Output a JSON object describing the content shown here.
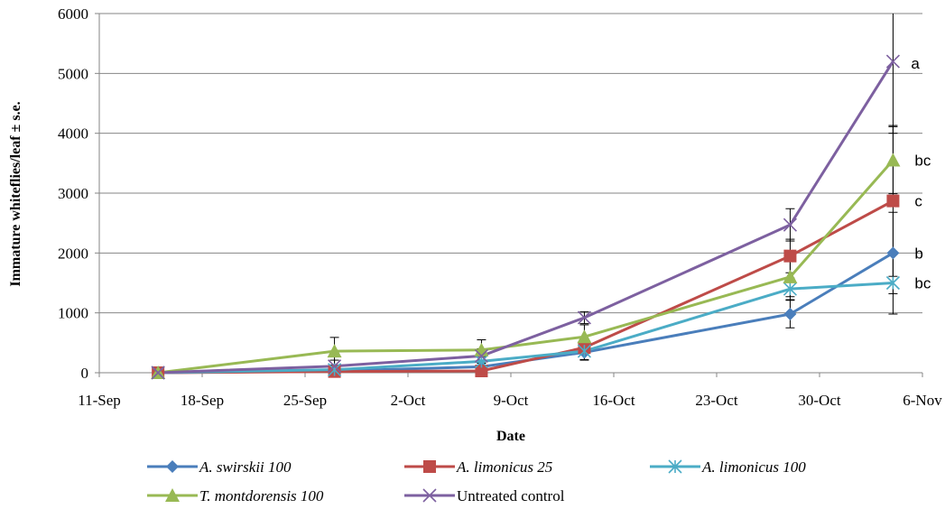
{
  "chart_data": {
    "type": "line",
    "xlabel": "Date",
    "ylabel": "Immature whiteflies/leaf ± s.e.",
    "ylim": [
      0,
      6000
    ],
    "yticks": [
      0,
      1000,
      2000,
      3000,
      4000,
      5000,
      6000
    ],
    "xlim": [
      "11-Sep",
      "6-Nov"
    ],
    "xticks": [
      "11-Sep",
      "18-Sep",
      "25-Sep",
      "2-Oct",
      "9-Oct",
      "16-Oct",
      "23-Oct",
      "30-Oct",
      "6-Nov"
    ],
    "x": [
      "15-Sep",
      "27-Sep",
      "7-Oct",
      "14-Oct",
      "28-Oct",
      "4-Nov"
    ],
    "grid": "horizontal",
    "legend_position": "bottom",
    "series": [
      {
        "name": "A. swirskii 100",
        "italic": true,
        "color": "#4a7ebb",
        "marker": "diamond",
        "values": [
          0,
          30,
          100,
          340,
          980,
          2000
        ],
        "errors": [
          0,
          40,
          60,
          120,
          230,
          680
        ],
        "significance": "b"
      },
      {
        "name": "A. limonicus 25",
        "italic": true,
        "color": "#be4b48",
        "marker": "square",
        "values": [
          0,
          20,
          30,
          420,
          1950,
          2870
        ],
        "errors": [
          0,
          30,
          40,
          100,
          280,
          1260
        ],
        "significance": "c"
      },
      {
        "name": "A. limonicus 100",
        "italic": true,
        "color": "#4bacc6",
        "marker": "asterisk",
        "values": [
          0,
          50,
          190,
          360,
          1400,
          1500
        ],
        "errors": [
          0,
          40,
          80,
          150,
          180,
          520
        ],
        "significance": "bc"
      },
      {
        "name": "T. montdorensis 100",
        "italic": true,
        "color": "#98b954",
        "marker": "triangle",
        "values": [
          0,
          360,
          380,
          600,
          1600,
          3550
        ],
        "errors": [
          0,
          230,
          170,
          200,
          330,
          560
        ],
        "significance": "bc"
      },
      {
        "name": "Untreated control",
        "italic": false,
        "color": "#7d60a0",
        "marker": "x",
        "values": [
          0,
          110,
          280,
          920,
          2470,
          5200
        ],
        "errors": [
          0,
          100,
          120,
          100,
          270,
          1200
        ],
        "significance": "a"
      }
    ]
  }
}
